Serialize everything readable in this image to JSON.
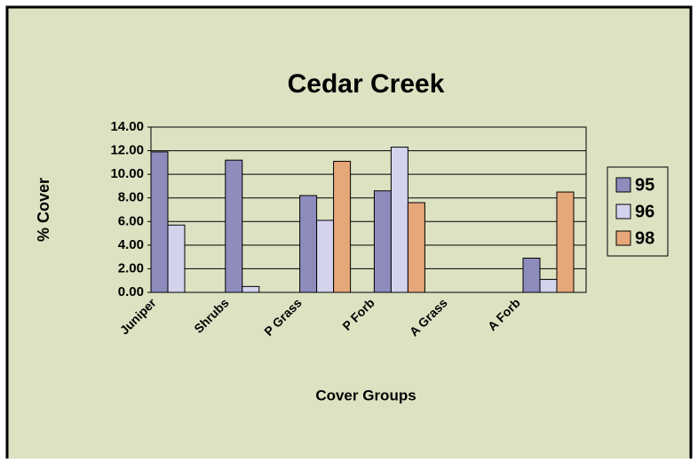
{
  "chart_data": {
    "type": "bar",
    "title": "Cedar Creek",
    "x_label": "Cover Groups",
    "y_label": "% Cover",
    "categories": [
      "Juniper",
      "Shrubs",
      "P Grass",
      "P Forb",
      "A Grass",
      "A Forb"
    ],
    "series": [
      {
        "name": "95",
        "color": "#8e8cbd",
        "values": [
          11.9,
          11.2,
          8.2,
          8.6,
          0,
          2.9
        ]
      },
      {
        "name": "96",
        "color": "#d3d3ee",
        "values": [
          5.7,
          0.5,
          6.1,
          12.3,
          0,
          1.1
        ]
      },
      {
        "name": "98",
        "color": "#e6a77a",
        "values": [
          0,
          0,
          11.1,
          7.6,
          0,
          8.5
        ]
      }
    ],
    "ylim": [
      0,
      14
    ],
    "yticks": [
      {
        "value": 0,
        "label": "0.00"
      },
      {
        "value": 2,
        "label": "2.00"
      },
      {
        "value": 4,
        "label": "4.00"
      },
      {
        "value": 6,
        "label": "6.00"
      },
      {
        "value": 8,
        "label": "8.00"
      },
      {
        "value": 10,
        "label": "10.00"
      },
      {
        "value": 12,
        "label": "12.00"
      },
      {
        "value": 14,
        "label": "14.00"
      }
    ],
    "grid": true,
    "legend": "right"
  }
}
